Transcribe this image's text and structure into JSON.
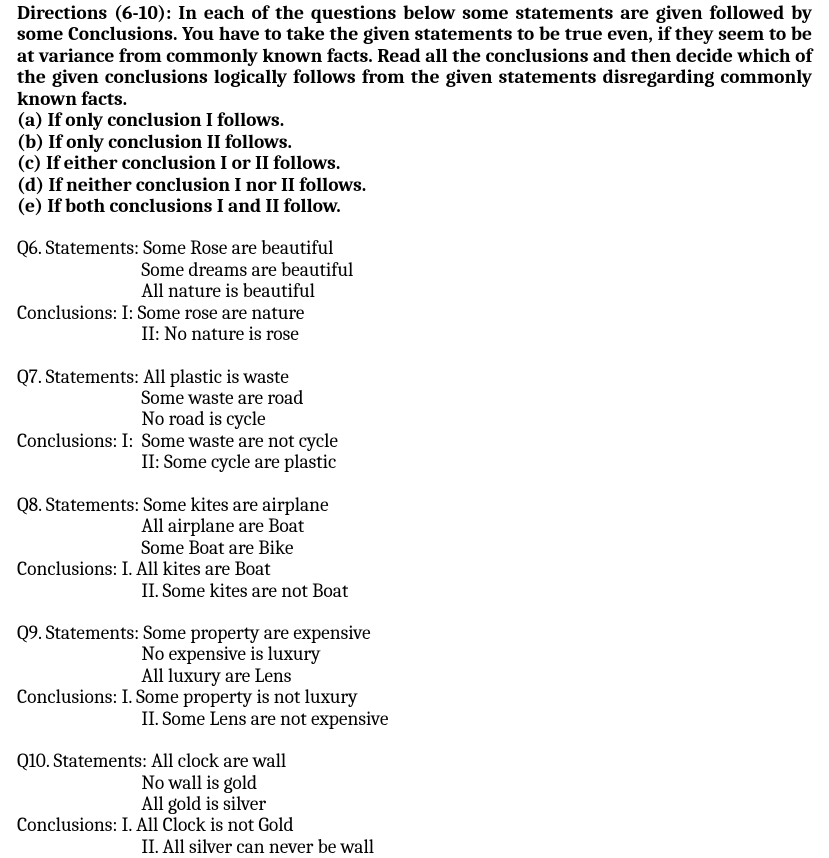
{
  "directions": "Directions (6-10): In each of the questions below some statements are given followed by some Conclusions. You have to take the given statements to be true even, if they seem to be at variance from commonly known facts. Read all the conclusions and then decide which of the given conclusions logically follows from the given statements disregarding commonly known facts.",
  "options": {
    "a": "(a) If only conclusion I follows.",
    "b": "(b) If only conclusion II follows.",
    "c": "(c) If either conclusion I or II follows.",
    "d": "(d) If neither conclusion I nor II follows.",
    "e": "(e) If both conclusions I and II follow."
  },
  "q6": {
    "s1": "Q6. Statements: Some Rose are beautiful",
    "s2": "                             Some dreams are beautiful",
    "s3": "                             All nature is beautiful",
    "c1": "Conclusions: I: Some rose are nature",
    "c2": "                             II: No nature is rose"
  },
  "q7": {
    "s1": "Q7. Statements: All plastic is waste",
    "s2": "                             Some waste are road",
    "s3": "                             No road is cycle",
    "c1": "Conclusions: I:  Some waste are not cycle",
    "c2": "                             II: Some cycle are plastic"
  },
  "q8": {
    "s1": "Q8. Statements: Some kites are airplane",
    "s2": "                             All airplane are Boat",
    "s3": "                             Some Boat are Bike",
    "c1": "Conclusions: I. All kites are Boat",
    "c2": "                             II. Some kites are not Boat"
  },
  "q9": {
    "s1": "Q9. Statements: Some property are expensive",
    "s2": "                             No expensive is luxury",
    "s3": "                             All luxury are Lens",
    "c1": "Conclusions: I. Some property is not luxury",
    "c2": "                             II. Some Lens are not expensive"
  },
  "q10": {
    "s1": "Q10. Statements: All clock are wall",
    "s2": "                             No wall is gold",
    "s3": "                             All gold is silver",
    "c1": "Conclusions: I. All Clock is not Gold",
    "c2": "                             II. All silver can never be wall"
  }
}
